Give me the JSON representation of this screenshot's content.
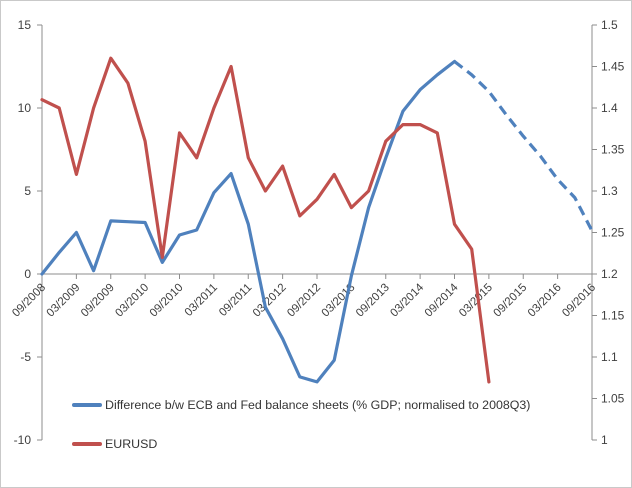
{
  "chart_data": {
    "type": "line",
    "title": "",
    "x_axis": {
      "tick_labels": [
        "09/2008",
        "03/2009",
        "09/2009",
        "03/2010",
        "09/2010",
        "03/2011",
        "09/2011",
        "03/2012",
        "09/2012",
        "03/2013",
        "09/2013",
        "03/2014",
        "09/2014",
        "03/2015",
        "09/2015",
        "03/2016",
        "09/2016"
      ],
      "points_per_tick": 2,
      "n_points": 33,
      "frequency": "quarterly"
    },
    "left_axis": {
      "min": -10,
      "max": 15,
      "step": 5,
      "tick_labels": [
        "15",
        "10",
        "5",
        "0",
        "-5",
        "-10"
      ]
    },
    "right_axis": {
      "min": 1.0,
      "max": 1.5,
      "step": 0.05,
      "tick_labels": [
        "1.5",
        "1.45",
        "1.4",
        "1.35",
        "1.3",
        "1.25",
        "1.2",
        "1.15",
        "1.1",
        "1.05",
        "1"
      ]
    },
    "series": [
      {
        "name": "Difference b/w ECB and Fed balance sheets (% GDP; normalised to 2008Q3)",
        "axis": "left",
        "color": "#4F81BD",
        "dashed_from_index": 24,
        "values": [
          0.0,
          1.3,
          2.5,
          0.2,
          3.2,
          3.15,
          3.1,
          0.7,
          2.35,
          2.65,
          4.9,
          6.05,
          3.0,
          -2.0,
          -3.9,
          -6.2,
          -6.5,
          -5.2,
          -0.1,
          4.0,
          7.0,
          9.8,
          11.1,
          12.0,
          12.8,
          12.0,
          11.0,
          9.6,
          8.3,
          7.1,
          5.7,
          4.6,
          2.6
        ]
      },
      {
        "name": "EURUSD",
        "axis": "right",
        "color": "#C0504D",
        "dashed_from_index": null,
        "values": [
          1.41,
          1.4,
          1.32,
          1.4,
          1.46,
          1.43,
          1.36,
          1.22,
          1.37,
          1.34,
          1.4,
          1.45,
          1.34,
          1.3,
          1.33,
          1.27,
          1.29,
          1.32,
          1.28,
          1.3,
          1.36,
          1.38,
          1.38,
          1.37,
          1.26,
          1.23,
          1.07
        ]
      }
    ],
    "legend_position": "bottom-left-inside",
    "grid": "none"
  },
  "colors": {
    "axis_line": "#8c8c8c",
    "tick_label": "#3f3f3f",
    "chart_border": "#c9c9c9",
    "background": "#ffffff",
    "series_blue": "#4F81BD",
    "series_red": "#C0504D"
  }
}
